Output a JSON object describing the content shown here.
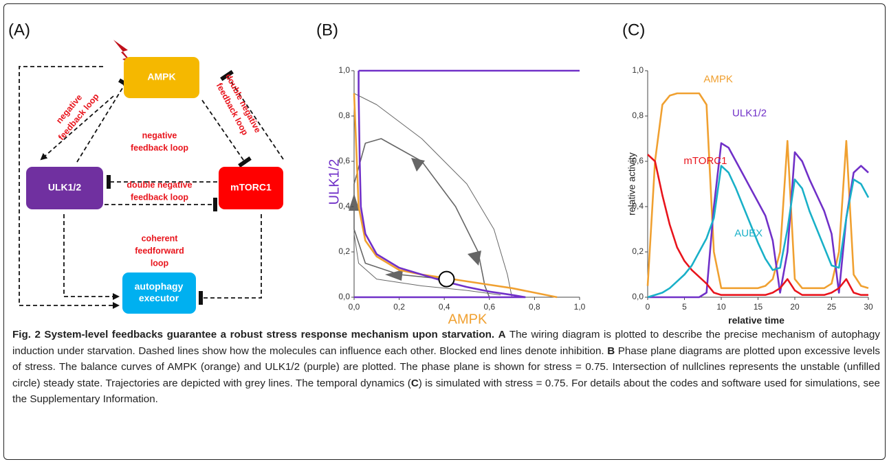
{
  "diagram": {
    "label": "(A)",
    "nodes": [
      {
        "lines": [
          "AMPK"
        ]
      },
      {
        "lines": [
          "ULK1/2"
        ]
      },
      {
        "lines": [
          "mTORC1"
        ]
      },
      {
        "lines": [
          "autophagy",
          "executor"
        ]
      }
    ],
    "edge_labels": [
      {
        "lines": [
          "negative",
          "feedback loop"
        ]
      },
      {
        "lines": [
          "double negative",
          "feedback loop"
        ]
      },
      {
        "lines": [
          "negative",
          "feedback loop"
        ]
      },
      {
        "lines": [
          "double negative",
          "feedback loop"
        ]
      },
      {
        "lines": [
          "coherent",
          "feedforward",
          "loop"
        ]
      }
    ]
  },
  "chart_data": [
    {
      "type": "line",
      "panel_label": "(B)",
      "xlabel": "AMPK",
      "ylabel": "ULK1/2",
      "xlim": [
        0,
        1
      ],
      "ylim": [
        0,
        1
      ],
      "xticks": [
        {
          "value": 0,
          "label": "0,0"
        },
        {
          "value": 0.2,
          "label": "0,2"
        },
        {
          "value": 0.4,
          "label": "0,4"
        },
        {
          "value": 0.6,
          "label": "0,6"
        },
        {
          "value": 0.8,
          "label": "0,8"
        },
        {
          "value": 1,
          "label": "1,0"
        }
      ],
      "yticks": [
        {
          "value": 0,
          "label": "0,0"
        },
        {
          "value": 0.2,
          "label": "0,2"
        },
        {
          "value": 0.4,
          "label": "0,4"
        },
        {
          "value": 0.6,
          "label": "0,6"
        },
        {
          "value": 0.8,
          "label": "0,8"
        },
        {
          "value": 1,
          "label": "1,0"
        }
      ],
      "series": [
        {
          "color": "#666666",
          "x": [
            0.0,
            0.1,
            0.3,
            0.5,
            0.62,
            0.68,
            0.7
          ],
          "values": [
            0.9,
            0.85,
            0.7,
            0.5,
            0.3,
            0.1,
            0.0
          ]
        },
        {
          "color": "#666666",
          "x": [
            0.4,
            0.2,
            0.05,
            0.0,
            0.0,
            0.05,
            0.12,
            0.3,
            0.45,
            0.55,
            0.58,
            0.6
          ],
          "values": [
            0.08,
            0.1,
            0.15,
            0.3,
            0.5,
            0.68,
            0.7,
            0.6,
            0.4,
            0.2,
            0.05,
            0.0
          ]
        },
        {
          "color": "#666666",
          "x": [
            0.0,
            0.02,
            0.1,
            0.3,
            0.5,
            0.65
          ],
          "values": [
            0.28,
            0.15,
            0.08,
            0.05,
            0.03,
            0.01
          ]
        },
        {
          "color": "#f0a030",
          "x": [
            0.0,
            0.02,
            0.05,
            0.1,
            0.2,
            0.3,
            0.4,
            0.5,
            0.6,
            0.7,
            0.8,
            0.9
          ],
          "values": [
            0.9,
            0.4,
            0.25,
            0.18,
            0.12,
            0.1,
            0.085,
            0.07,
            0.055,
            0.04,
            0.02,
            0.0
          ]
        },
        {
          "color": "#7030c8",
          "x": [
            0.02,
            0.02,
            0.025,
            0.03,
            0.05,
            0.1,
            0.2,
            0.3,
            0.4,
            0.5,
            0.6,
            0.7,
            0.76,
            null,
            0.02,
            1.0,
            null,
            0.0,
            0.76
          ],
          "values": [
            1.0,
            0.9,
            0.6,
            0.4,
            0.28,
            0.19,
            0.13,
            0.1,
            0.07,
            0.045,
            0.025,
            0.01,
            0.0,
            null,
            1.0,
            1.0,
            null,
            0.0,
            0.0
          ]
        }
      ],
      "steady_state": {
        "x": 0.41,
        "y": 0.08
      }
    },
    {
      "type": "line",
      "panel_label": "(C)",
      "xlabel": "relative time",
      "ylabel": "relative activity",
      "xlim": [
        0,
        30
      ],
      "ylim": [
        0,
        1
      ],
      "xticks": [
        0,
        5,
        10,
        15,
        20,
        25,
        30
      ],
      "yticks": [
        {
          "value": 0,
          "label": "0,0"
        },
        {
          "value": 0.2,
          "label": "0,2"
        },
        {
          "value": 0.4,
          "label": "0,4"
        },
        {
          "value": 0.6,
          "label": "0,6"
        },
        {
          "value": 0.8,
          "label": "0,8"
        },
        {
          "value": 1,
          "label": "1,0"
        }
      ],
      "x": [
        0,
        1,
        2,
        3,
        4,
        5,
        6,
        7,
        8,
        9,
        10,
        11,
        12,
        13,
        14,
        15,
        16,
        17,
        18,
        19,
        20,
        21,
        22,
        23,
        24,
        25,
        26,
        27,
        28,
        29,
        30
      ],
      "series": [
        {
          "name": "AMPK",
          "color": "#f0a030",
          "values": [
            0.05,
            0.6,
            0.85,
            0.89,
            0.9,
            0.9,
            0.9,
            0.9,
            0.85,
            0.2,
            0.04,
            0.04,
            0.04,
            0.04,
            0.04,
            0.04,
            0.05,
            0.08,
            0.2,
            0.69,
            0.08,
            0.04,
            0.04,
            0.04,
            0.04,
            0.06,
            0.2,
            0.69,
            0.1,
            0.05,
            0.04
          ]
        },
        {
          "name": "ULK1/2",
          "color": "#7030c8",
          "values": [
            0,
            0,
            0,
            0,
            0,
            0,
            0,
            0,
            0.02,
            0.4,
            0.68,
            0.66,
            0.6,
            0.54,
            0.48,
            0.42,
            0.36,
            0.25,
            0.02,
            0.2,
            0.64,
            0.6,
            0.52,
            0.45,
            0.38,
            0.28,
            0.02,
            0.35,
            0.55,
            0.58,
            0.55
          ]
        },
        {
          "name": "mTORC1",
          "color": "#e8141c",
          "values": [
            0.63,
            0.6,
            0.45,
            0.32,
            0.22,
            0.16,
            0.12,
            0.09,
            0.06,
            0.02,
            0.01,
            0.01,
            0.01,
            0.01,
            0.01,
            0.01,
            0.01,
            0.02,
            0.04,
            0.08,
            0.03,
            0.01,
            0.01,
            0.01,
            0.01,
            0.02,
            0.04,
            0.08,
            0.02,
            0.01,
            0.01
          ]
        },
        {
          "name": "AUEX",
          "color": "#19b0c8",
          "values": [
            0,
            0.01,
            0.02,
            0.04,
            0.07,
            0.1,
            0.14,
            0.2,
            0.26,
            0.35,
            0.58,
            0.55,
            0.48,
            0.4,
            0.32,
            0.24,
            0.17,
            0.12,
            0.13,
            0.3,
            0.52,
            0.48,
            0.38,
            0.3,
            0.22,
            0.14,
            0.13,
            0.35,
            0.52,
            0.5,
            0.44
          ]
        }
      ]
    }
  ],
  "caption": {
    "title": "Fig. 2 System-level feedbacks guarantee a robust stress response mechanism upon starvation.",
    "parts": [
      {
        "bold": true,
        "text": "A"
      },
      {
        "bold": false,
        "text": " The wiring diagram is plotted to describe the precise mechanism of autophagy induction under starvation. Dashed lines show how the molecules can influence each other. Blocked end lines denote inhibition. "
      },
      {
        "bold": true,
        "text": "B"
      },
      {
        "bold": false,
        "text": " Phase plane diagrams are plotted upon excessive levels of stress. The balance curves of AMPK (orange) and ULK1/2 (purple) are plotted. The phase plane is shown for stress = 0.75. Intersection of nullclines represents the unstable (unfilled circle) steady state. Trajectories are depicted with grey lines. The temporal dynamics ("
      },
      {
        "bold": true,
        "text": "C"
      },
      {
        "bold": false,
        "text": ") is simulated with stress = 0.75. For details about the codes and software used for simulations, see the Supplementary Information."
      }
    ]
  }
}
